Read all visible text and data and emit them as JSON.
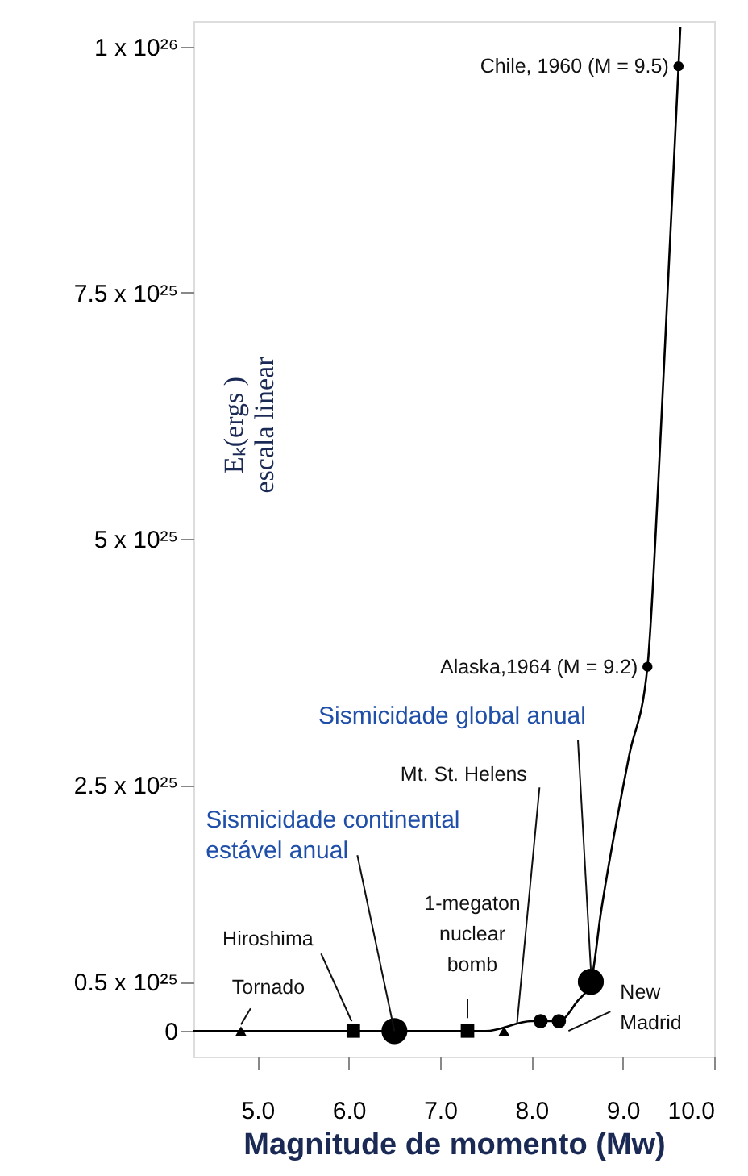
{
  "chart_data": {
    "type": "scatter",
    "xlabel": "Magnitude de momento (Mw)",
    "ylabel": "Eₖ(ergs )\nescala linear",
    "xlim": [
      4.3,
      10.0
    ],
    "xticks": [
      {
        "value": 5,
        "label": "5.0"
      },
      {
        "value": 6,
        "label": "6.0"
      },
      {
        "value": 7,
        "label": "7.0"
      },
      {
        "value": 8,
        "label": "8.0"
      },
      {
        "value": 9,
        "label": "9.0"
      },
      {
        "value": 10,
        "label": "10.0"
      }
    ],
    "ylim": [
      -2.6e+24,
      1.026e+26
    ],
    "yticks": [
      0,
      {
        "value": 5e+24,
        "label": "0.5 x 10²⁵"
      },
      {
        "value": 2.5e+25,
        "label": "2.5 x 10²⁵"
      },
      {
        "value": 5e+25,
        "label": "5 x 10²⁵"
      },
      {
        "value": 7.5e+25,
        "label": "7.5 x 10²⁵"
      },
      {
        "value": 1e+26,
        "label": "1 x 10²⁶"
      }
    ],
    "grid": false,
    "series": [
      {
        "type": "line",
        "color": "#000000",
        "marker": "none",
        "line_style": "solid",
        "x": [
          4.3,
          6.0,
          7.5,
          8.0,
          8.3,
          8.5,
          8.65,
          8.76,
          9.07,
          9.27,
          9.39,
          9.5,
          9.61,
          9.63
        ],
        "values": [
          0,
          0,
          0,
          1e+24,
          1e+24,
          3e+24,
          5e+24,
          1.2e+25,
          2.8e+25,
          3.7e+25,
          5.6e+25,
          7.7e+25,
          9.8e+25,
          1.02e+26
        ]
      },
      {
        "type": "bubble",
        "color": "#000000",
        "x": [
          6.5,
          8.1,
          8.3,
          8.65,
          9.27,
          9.61
        ],
        "values": [
          0,
          1e+24,
          1e+24,
          5e+24,
          3.7e+25,
          9.8e+25
        ],
        "sizes": [
          1,
          0.3,
          0.3,
          1,
          0.15,
          0.15
        ]
      },
      {
        "marker": "square",
        "color": "#000000",
        "x": [
          6.05,
          7.3
        ],
        "values": [
          0,
          0
        ]
      },
      {
        "marker": "triangle",
        "color": "#000000",
        "x": [
          4.82,
          7.7
        ],
        "values": [
          0,
          0
        ]
      }
    ],
    "annotations": [
      {
        "text": "Chile, 1960 (M = 9.5)",
        "x": 9.61,
        "y": 9.8e+25
      },
      {
        "text": "Alaska,1964 (M = 9.2)",
        "x": 9.27,
        "y": 3.7e+25
      },
      {
        "text": "Sismicidade global anual",
        "x": 8.65,
        "y": 5e+24
      },
      {
        "text": "Mt. St. Helens",
        "x": 7.7,
        "y": 0
      },
      {
        "text": "Sismicidade continental\nestável anual",
        "x": 6.5,
        "y": 0
      },
      {
        "text": "1-megaton\nnuclear\nbomb",
        "x": 7.3,
        "y": 0
      },
      {
        "text": "Hiroshima",
        "x": 6.05,
        "y": 0
      },
      {
        "text": "Tornado",
        "x": 4.82,
        "y": 0
      },
      {
        "text": "New\nMadrid",
        "x": 8.3,
        "y": 1e+24
      }
    ]
  }
}
